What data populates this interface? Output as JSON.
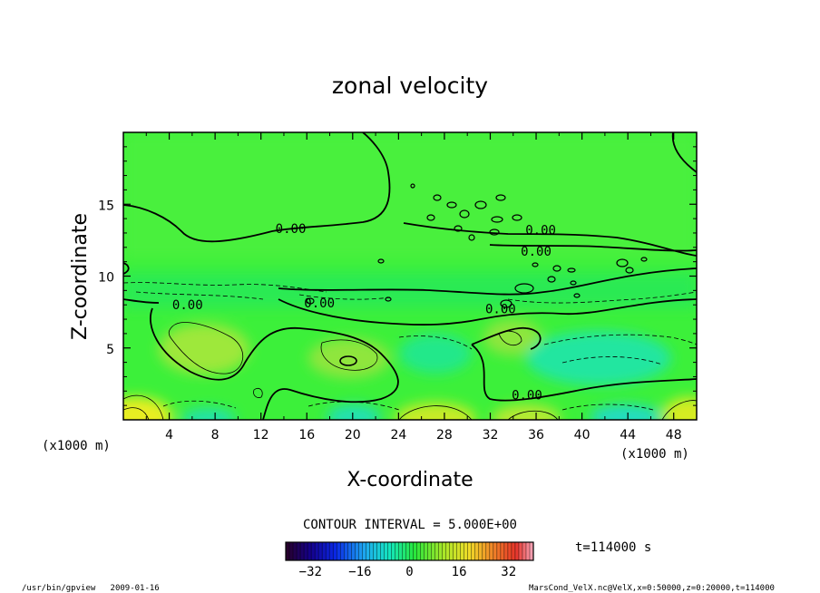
{
  "chart_data": {
    "type": "heatmap",
    "title": "zonal velocity",
    "xlabel": "X-coordinate",
    "ylabel": "Z-coordinate",
    "x_unit": "(x1000 m)",
    "x_ticks": [
      4,
      8,
      12,
      16,
      20,
      24,
      28,
      32,
      36,
      40,
      44,
      48
    ],
    "y_ticks": [
      5,
      10,
      15
    ],
    "xlim": [
      0,
      50
    ],
    "ylim": [
      0,
      20
    ],
    "contour_interval_text": "CONTOUR INTERVAL = 5.000E+00",
    "contour_labels": [
      {
        "text": "0.00",
        "x": 14.6,
        "z": 13.2
      },
      {
        "text": "0.00",
        "x": 5.6,
        "z": 7.9
      },
      {
        "text": "0.00",
        "x": 17.1,
        "z": 8.0
      },
      {
        "text": "0.00",
        "x": 32.9,
        "z": 7.6
      },
      {
        "text": "0.00",
        "x": 36.4,
        "z": 13.1
      },
      {
        "text": "0.00",
        "x": 36.0,
        "z": 11.6
      },
      {
        "text": "0.00",
        "x": 35.2,
        "z": 1.6
      }
    ],
    "colorbar": {
      "ticks": [
        -32,
        -16,
        0,
        16,
        32
      ],
      "range": [
        -40,
        40
      ]
    },
    "time_label": "t=114000 s",
    "footer_left": "/usr/bin/gpview   2009-01-16",
    "footer_right": "MarsCond_VelX.nc@VelX,x=0:50000,z=0:20000,t=114000"
  }
}
